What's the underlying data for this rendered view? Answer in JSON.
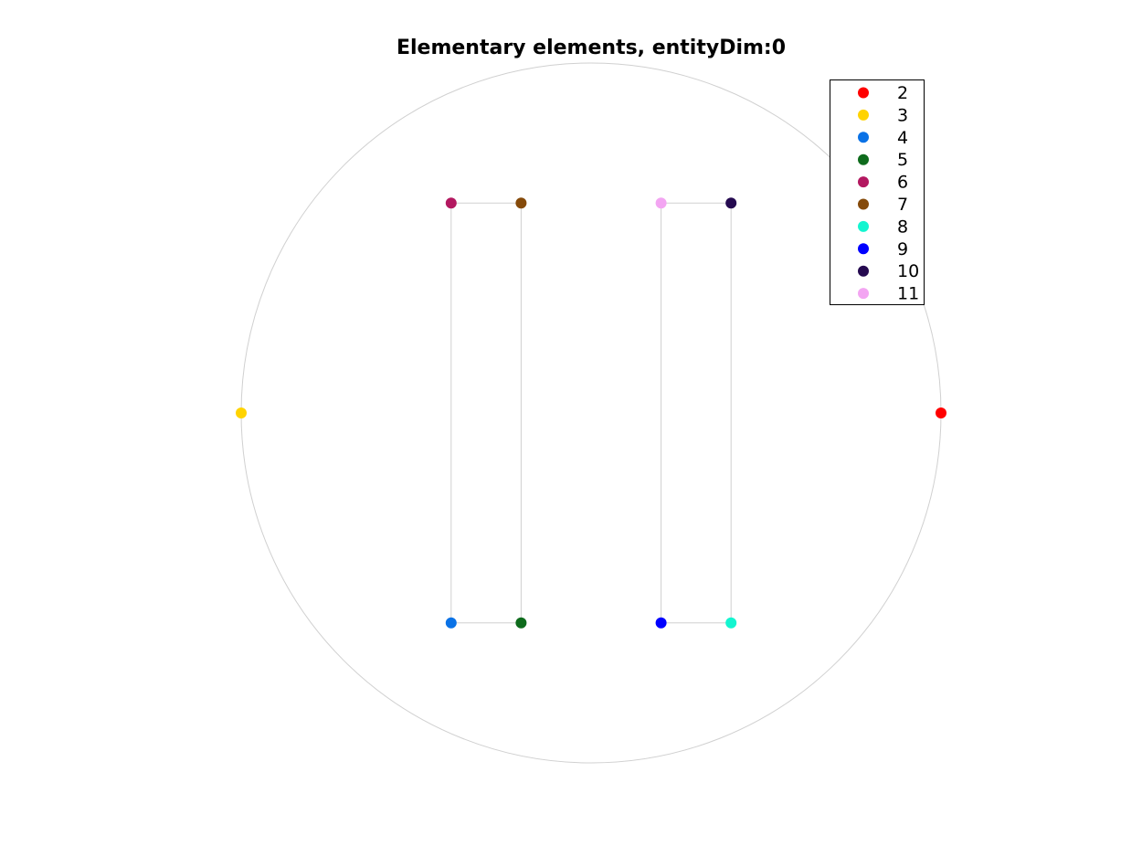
{
  "chart_data": {
    "type": "scatter",
    "title": "Elementary elements, entityDim:0",
    "series": [
      {
        "name": "2",
        "color": "#ff0000",
        "x": [
          1
        ],
        "y": [
          0
        ]
      },
      {
        "name": "3",
        "color": "#ffd300",
        "x": [
          -1
        ],
        "y": [
          0
        ]
      },
      {
        "name": "4",
        "color": "#0a72e6",
        "x": [
          -0.4
        ],
        "y": [
          -0.6
        ]
      },
      {
        "name": "5",
        "color": "#0e6b1c",
        "x": [
          -0.2
        ],
        "y": [
          -0.6
        ]
      },
      {
        "name": "6",
        "color": "#b31860",
        "x": [
          -0.4
        ],
        "y": [
          0.6
        ]
      },
      {
        "name": "7",
        "color": "#854a0a",
        "x": [
          -0.2
        ],
        "y": [
          0.6
        ]
      },
      {
        "name": "8",
        "color": "#14f5d0",
        "x": [
          0.4
        ],
        "y": [
          -0.6
        ]
      },
      {
        "name": "9",
        "color": "#0000ff",
        "x": [
          0.2
        ],
        "y": [
          -0.6
        ]
      },
      {
        "name": "10",
        "color": "#250a50",
        "x": [
          0.4
        ],
        "y": [
          0.6
        ]
      },
      {
        "name": "11",
        "color": "#f3a5f2",
        "x": [
          0.2
        ],
        "y": [
          0.6
        ]
      }
    ],
    "legend": "northeast"
  }
}
